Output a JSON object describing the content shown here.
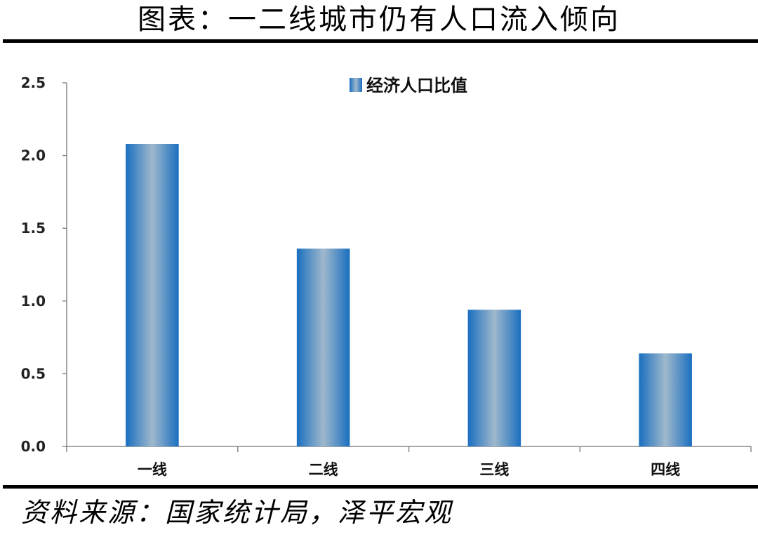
{
  "header": {
    "title": "图表：一二线城市仍有人口流入倾向"
  },
  "footer": {
    "source": "资料来源：国家统计局，泽平宏观"
  },
  "chart_data": {
    "type": "bar",
    "categories": [
      "一线",
      "二线",
      "三线",
      "四线"
    ],
    "series": [
      {
        "name": "经济人口比值",
        "values": [
          2.08,
          1.36,
          0.94,
          0.64
        ]
      }
    ],
    "ylim": [
      0,
      2.5
    ],
    "yticks": [
      "0.0",
      "0.5",
      "1.0",
      "1.5",
      "2.0",
      "2.5"
    ],
    "legend_position": "top-center",
    "grid": false,
    "colors": {
      "bar_edge": "#1a6fc0",
      "bar_center": "#9fb8cc"
    }
  }
}
